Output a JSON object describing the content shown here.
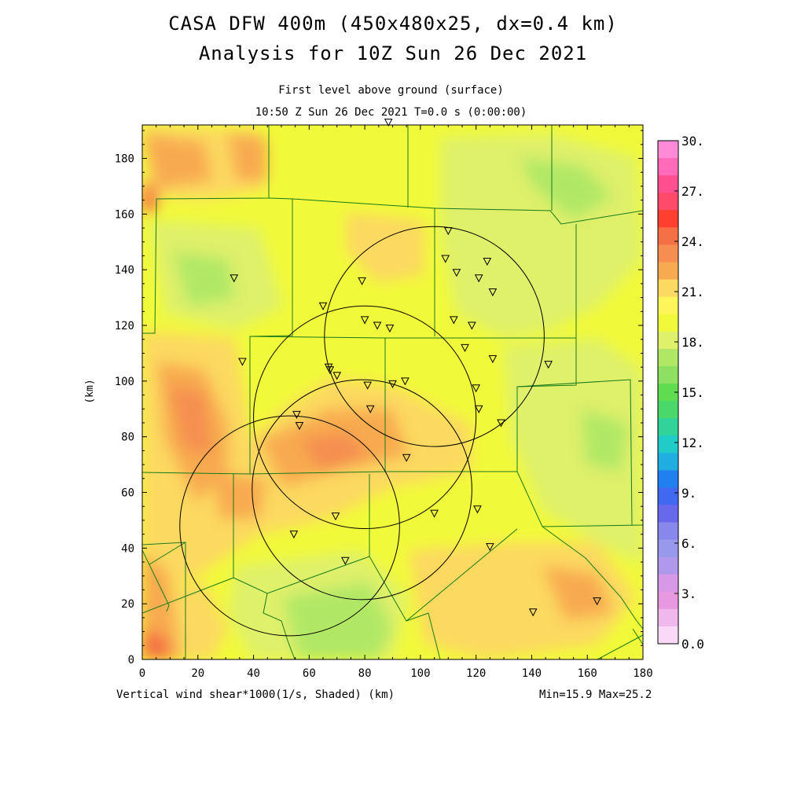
{
  "title": {
    "line1": "CASA DFW 400m (450x480x25, dx=0.4 km)",
    "line2": "Analysis for 10Z Sun 26 Dec 2021"
  },
  "subtitle": {
    "level": "First level above ground (surface)",
    "time": "10:50 Z Sun 26 Dec 2021    T=0.0 s (0:00:00)"
  },
  "footer": {
    "field": "Vertical wind shear*1000(1/s, Shaded)  (km)",
    "minmax": "Min=15.9 Max=25.2"
  },
  "axes": {
    "y_label": "(km)",
    "x_ticks": [
      "0",
      "20",
      "40",
      "60",
      "80",
      "100",
      "120",
      "140",
      "160",
      "180"
    ],
    "y_ticks": [
      "0",
      "20",
      "40",
      "60",
      "80",
      "100",
      "120",
      "140",
      "160",
      "180"
    ],
    "x_range": [
      0,
      180
    ],
    "y_range": [
      0,
      192
    ]
  },
  "colorbar": {
    "labels": [
      "30.",
      "27.",
      "24.",
      "21.",
      "18.",
      "15.",
      "12.",
      "9.",
      "6.",
      "3.",
      "0.0"
    ],
    "colors_top_to_bottom": [
      "#ff8ad8",
      "#ff6bb8",
      "#ff4f8f",
      "#ff4a6a",
      "#ff4030",
      "#f57045",
      "#f58e50",
      "#f8aa50",
      "#fcd960",
      "#fdf55a",
      "#f1fa3a",
      "#dff06a",
      "#b0e866",
      "#8ee060",
      "#60dc50",
      "#4ad86a",
      "#30d49a",
      "#20ccc8",
      "#20aee0",
      "#2080f0",
      "#4068f0",
      "#6868ec",
      "#8888ec",
      "#9898ec",
      "#b098ec",
      "#d898e8",
      "#e898e0",
      "#f0b8ec",
      "#fad8f8"
    ]
  },
  "radars": [
    {
      "x": 105,
      "y": 116,
      "r": 39.5
    },
    {
      "x": 80,
      "y": 87,
      "r": 40
    },
    {
      "x": 53,
      "y": 48,
      "r": 39.5
    },
    {
      "x": 79,
      "y": 61,
      "r": 39.5
    }
  ],
  "stations": [
    [
      88.5,
      193
    ],
    [
      110,
      154
    ],
    [
      109,
      144
    ],
    [
      113,
      139
    ],
    [
      121,
      137
    ],
    [
      124,
      143
    ],
    [
      126,
      132
    ],
    [
      79,
      136
    ],
    [
      80,
      122
    ],
    [
      84.5,
      120
    ],
    [
      89,
      119
    ],
    [
      112,
      122
    ],
    [
      118.5,
      120
    ],
    [
      116,
      112
    ],
    [
      126,
      108
    ],
    [
      146,
      106
    ],
    [
      33,
      137
    ],
    [
      36,
      107
    ],
    [
      65,
      127
    ],
    [
      67,
      105
    ],
    [
      67.5,
      104
    ],
    [
      70,
      102
    ],
    [
      81,
      98.5
    ],
    [
      90,
      99
    ],
    [
      94.5,
      100
    ],
    [
      82,
      90
    ],
    [
      120,
      97.5
    ],
    [
      121,
      90
    ],
    [
      129,
      85
    ],
    [
      55.5,
      88
    ],
    [
      56.5,
      84
    ],
    [
      95,
      72.5
    ],
    [
      69.5,
      51.5
    ],
    [
      105,
      52.5
    ],
    [
      120.5,
      54
    ],
    [
      54.5,
      45
    ],
    [
      73,
      35.5
    ],
    [
      125,
      40.5
    ],
    [
      140.5,
      17
    ],
    [
      163.5,
      21
    ]
  ],
  "data_summary": {
    "min": 15.9,
    "max": 25.2
  }
}
